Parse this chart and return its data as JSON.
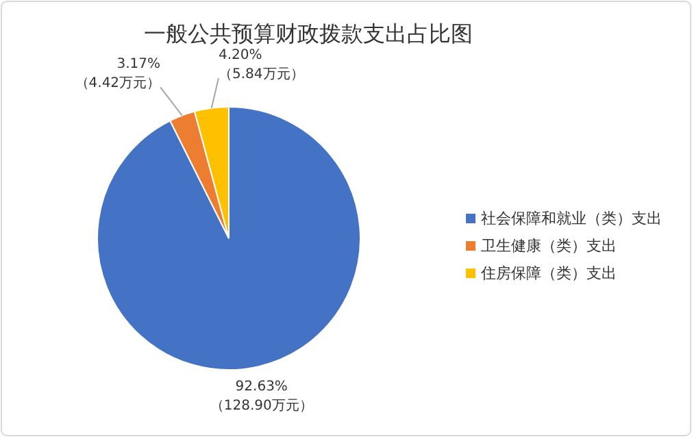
{
  "chart_data": {
    "type": "pie",
    "title": "一般公共预算财政拨款支出占比图",
    "categories": [
      "社会保障和就业（类）支出",
      "卫生健康（类）支出",
      "住房保障（类）支出"
    ],
    "values": [
      128.9,
      4.42,
      5.84
    ],
    "colors": [
      "#4472c4",
      "#ed7d31",
      "#ffc000"
    ],
    "value_labels": [
      "92.63%\n（128.90万元）",
      "3.17%\n（4.42万元）",
      "4.20%\n（5.84万元）"
    ],
    "legend": "right"
  }
}
